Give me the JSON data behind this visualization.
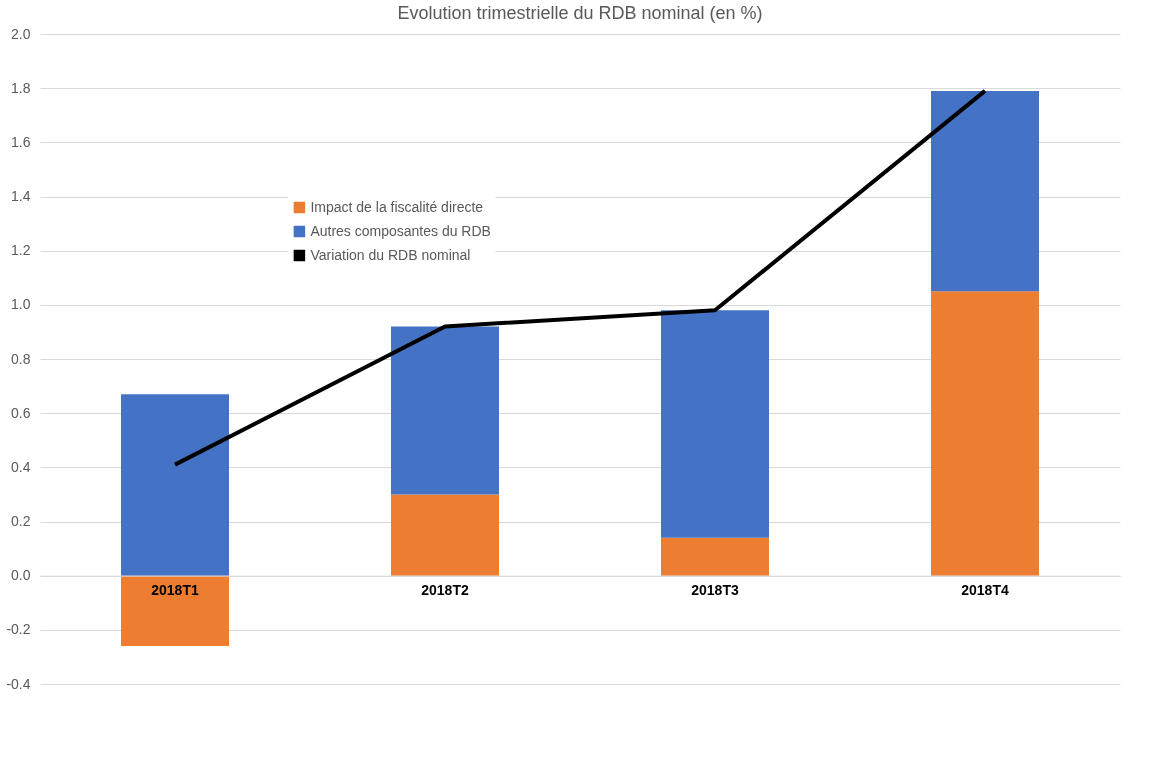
{
  "chart_data": {
    "type": "bar",
    "title": "Evolution trimestrielle du RDB nominal (en %)",
    "categories": [
      "2018T1",
      "2018T2",
      "2018T3",
      "2018T4"
    ],
    "stacked": true,
    "series": [
      {
        "name": "Impact de la fiscalité directe",
        "color": "#ed7d31",
        "values": [
          -0.26,
          0.3,
          0.14,
          1.05
        ]
      },
      {
        "name": "Autres composantes du RDB",
        "color": "#4472c4",
        "values": [
          0.67,
          0.62,
          0.84,
          0.74
        ]
      },
      {
        "name": "Variation du RDB nominal",
        "type": "line",
        "color": "#000000",
        "values": [
          0.41,
          0.92,
          0.98,
          1.79
        ]
      }
    ],
    "ylim": [
      -0.4,
      2.0
    ],
    "yticks": [
      {
        "value": -0.4,
        "label": "-0.4"
      },
      {
        "value": -0.2,
        "label": "-0.2"
      },
      {
        "value": 0,
        "label": "0.0"
      },
      {
        "value": 0.2,
        "label": "0.2"
      },
      {
        "value": 0.4,
        "label": "0.4"
      },
      {
        "value": 0.6,
        "label": "0.6"
      },
      {
        "value": 0.8,
        "label": "0.8"
      },
      {
        "value": 1.0,
        "label": "1.0"
      },
      {
        "value": 1.2,
        "label": "1.2"
      },
      {
        "value": 1.4,
        "label": "1.4"
      },
      {
        "value": 1.6,
        "label": "1.6"
      },
      {
        "value": 1.8,
        "label": "1.8"
      },
      {
        "value": 2.0,
        "label": "2.0"
      }
    ],
    "grid": "y",
    "legend": "top left",
    "marker": "none",
    "line_style": "solid"
  }
}
